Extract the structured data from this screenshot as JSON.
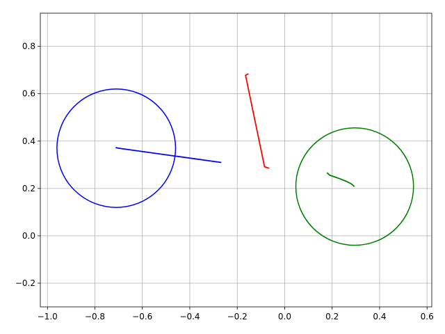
{
  "chart_data": {
    "type": "line",
    "title": "",
    "xlabel": "",
    "ylabel": "",
    "xlim": [
      -1.03,
      0.62
    ],
    "ylim": [
      -0.3,
      0.94
    ],
    "grid": true,
    "x_ticks": [
      -1.0,
      -0.8,
      -0.6,
      -0.4,
      -0.2,
      0.0,
      0.2,
      0.4,
      0.6
    ],
    "x_tick_labels": [
      "−1.0",
      "−0.8",
      "−0.6",
      "−0.4",
      "−0.2",
      "0.0",
      "0.2",
      "0.4",
      "0.6"
    ],
    "y_ticks": [
      -0.2,
      0.0,
      0.2,
      0.4,
      0.6,
      0.8
    ],
    "y_tick_labels": [
      "−0.2",
      "0.0",
      "0.2",
      "0.4",
      "0.6",
      "0.8"
    ],
    "series": [
      {
        "color": "#0000ff",
        "kind": "circle",
        "center": [
          -0.71,
          0.37
        ],
        "radius": 0.25
      },
      {
        "color": "#0000ff",
        "kind": "line",
        "x": [
          -0.71,
          -0.7,
          -0.27
        ],
        "y": [
          0.372,
          0.37,
          0.31
        ]
      },
      {
        "color": "#ff0000",
        "kind": "line",
        "x": [
          -0.155,
          -0.165,
          -0.085,
          -0.075,
          -0.068
        ],
        "y": [
          0.683,
          0.678,
          0.292,
          0.288,
          0.286
        ]
      },
      {
        "color": "#008000",
        "kind": "circle",
        "center": [
          0.295,
          0.208
        ],
        "radius": 0.248
      },
      {
        "color": "#008000",
        "kind": "line",
        "x": [
          0.18,
          0.19,
          0.23,
          0.26,
          0.28,
          0.292
        ],
        "y": [
          0.265,
          0.256,
          0.242,
          0.23,
          0.22,
          0.21
        ]
      }
    ]
  }
}
